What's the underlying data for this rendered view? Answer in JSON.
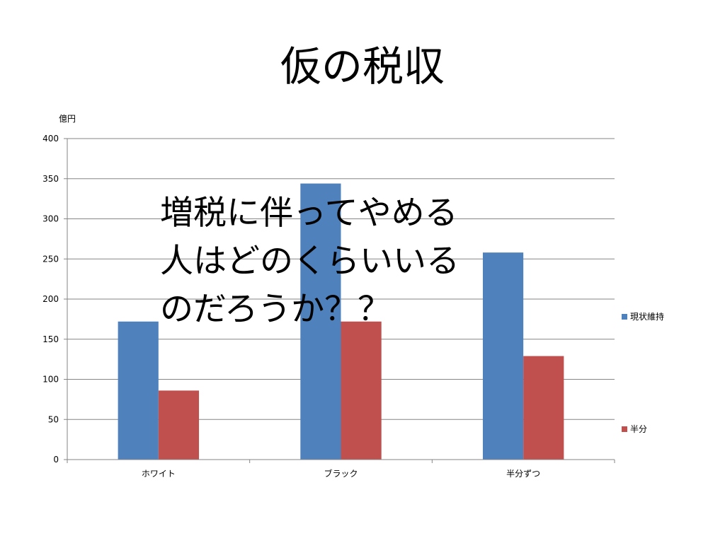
{
  "slide": {
    "title": "仮の税収",
    "overlay_lines": [
      "増税に伴ってやめる",
      "人はどのくらいいる",
      "のだろうか？？"
    ]
  },
  "chart_data": {
    "type": "bar",
    "title": "仮の税収",
    "ylabel": "億円",
    "xlabel": "",
    "categories": [
      "ホワイト",
      "ブラック",
      "半分ずつ"
    ],
    "series": [
      {
        "name": "現状維持",
        "values": [
          172,
          344,
          258
        ],
        "color": "#4f81bd"
      },
      {
        "name": "半分",
        "values": [
          86,
          172,
          129
        ],
        "color": "#c0504d"
      }
    ],
    "ylim": [
      0,
      400
    ],
    "yticks": [
      0,
      50,
      100,
      150,
      200,
      250,
      300,
      350,
      400
    ],
    "grid": true,
    "legend_position": "right"
  }
}
